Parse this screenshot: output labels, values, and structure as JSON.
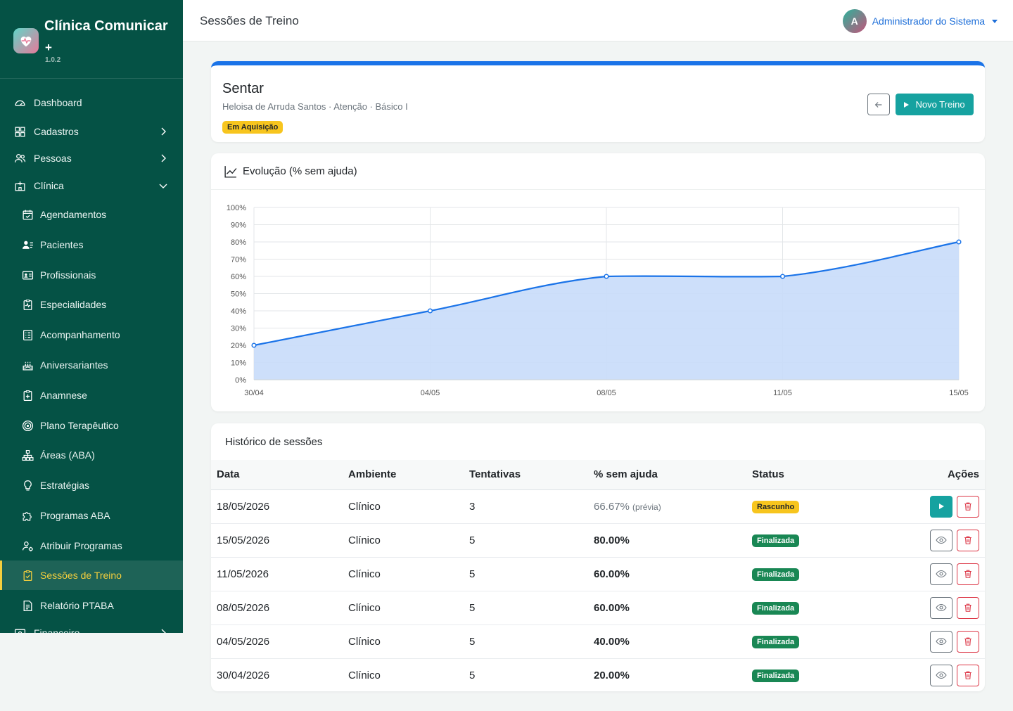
{
  "sidebar": {
    "brand_title": "Clínica Comunicar",
    "brand_plus": "+",
    "version": "1.0.2",
    "items": [
      {
        "label": "Dashboard",
        "icon": "dashboard-icon"
      },
      {
        "label": "Cadastros",
        "icon": "grid-icon"
      },
      {
        "label": "Pessoas",
        "icon": "people-icon"
      },
      {
        "label": "Clínica",
        "icon": "hospital-icon"
      },
      {
        "label": "Agendamentos",
        "icon": "calendar-icon"
      },
      {
        "label": "Pacientes",
        "icon": "patients-icon"
      },
      {
        "label": "Profissionais",
        "icon": "id-card-icon"
      },
      {
        "label": "Especialidades",
        "icon": "clipboard-pulse-icon"
      },
      {
        "label": "Acompanhamento",
        "icon": "checklist-icon"
      },
      {
        "label": "Aniversariantes",
        "icon": "cake-icon"
      },
      {
        "label": "Anamnese",
        "icon": "clipboard-plus-icon"
      },
      {
        "label": "Plano Terapêutico",
        "icon": "target-icon"
      },
      {
        "label": "Áreas (ABA)",
        "icon": "hierarchy-icon"
      },
      {
        "label": "Estratégias",
        "icon": "lightbulb-icon"
      },
      {
        "label": "Programas ABA",
        "icon": "puzzle-icon"
      },
      {
        "label": "Atribuir Programas",
        "icon": "user-gear-icon"
      },
      {
        "label": "Sessões de Treino",
        "icon": "clipboard-check-icon"
      },
      {
        "label": "Relatório PTABA",
        "icon": "document-icon"
      },
      {
        "label": "Financeiro",
        "icon": "finance-icon"
      }
    ]
  },
  "topbar": {
    "page_title": "Sessões de Treino",
    "avatar_initial": "A",
    "user_name": "Administrador do Sistema"
  },
  "program": {
    "title": "Sentar",
    "subtitle": "Heloisa de Arruda Santos · Atenção · Básico I",
    "status_badge": "Em Aquisição",
    "new_button": "Novo Treino",
    "accent": "#1a73e8"
  },
  "chart_card": {
    "title": "Evolução (% sem ajuda)"
  },
  "chart_data": {
    "type": "line",
    "title": "Evolução (% sem ajuda)",
    "categories": [
      "30/04",
      "04/05",
      "08/05",
      "11/05",
      "15/05"
    ],
    "series": [
      {
        "values": [
          20,
          40,
          60,
          60,
          80
        ]
      }
    ],
    "ylim": [
      0,
      100
    ],
    "yticks": [
      0,
      10,
      20,
      30,
      40,
      50,
      60,
      70,
      80,
      90,
      100
    ],
    "y_suffix": "%",
    "fill": "area",
    "grid": true,
    "line_color": "#1a73e8",
    "fill_color": "#c8dcfa"
  },
  "history": {
    "title": "Histórico de sessões",
    "columns": [
      "Data",
      "Ambiente",
      "Tentativas",
      "% sem ajuda",
      "Status",
      "Ações"
    ],
    "rows": [
      {
        "date": "18/05/2026",
        "env": "Clínico",
        "attempts": "3",
        "pct": "66.67%",
        "pct_note": "(prévia)",
        "status": "Rascunho",
        "status_type": "warn"
      },
      {
        "date": "15/05/2026",
        "env": "Clínico",
        "attempts": "5",
        "pct": "80.00%",
        "pct_note": "",
        "status": "Finalizada",
        "status_type": "ok"
      },
      {
        "date": "11/05/2026",
        "env": "Clínico",
        "attempts": "5",
        "pct": "60.00%",
        "pct_note": "",
        "status": "Finalizada",
        "status_type": "ok"
      },
      {
        "date": "08/05/2026",
        "env": "Clínico",
        "attempts": "5",
        "pct": "60.00%",
        "pct_note": "",
        "status": "Finalizada",
        "status_type": "ok"
      },
      {
        "date": "04/05/2026",
        "env": "Clínico",
        "attempts": "5",
        "pct": "40.00%",
        "pct_note": "",
        "status": "Finalizada",
        "status_type": "ok"
      },
      {
        "date": "30/04/2026",
        "env": "Clínico",
        "attempts": "5",
        "pct": "20.00%",
        "pct_note": "",
        "status": "Finalizada",
        "status_type": "ok"
      }
    ]
  }
}
